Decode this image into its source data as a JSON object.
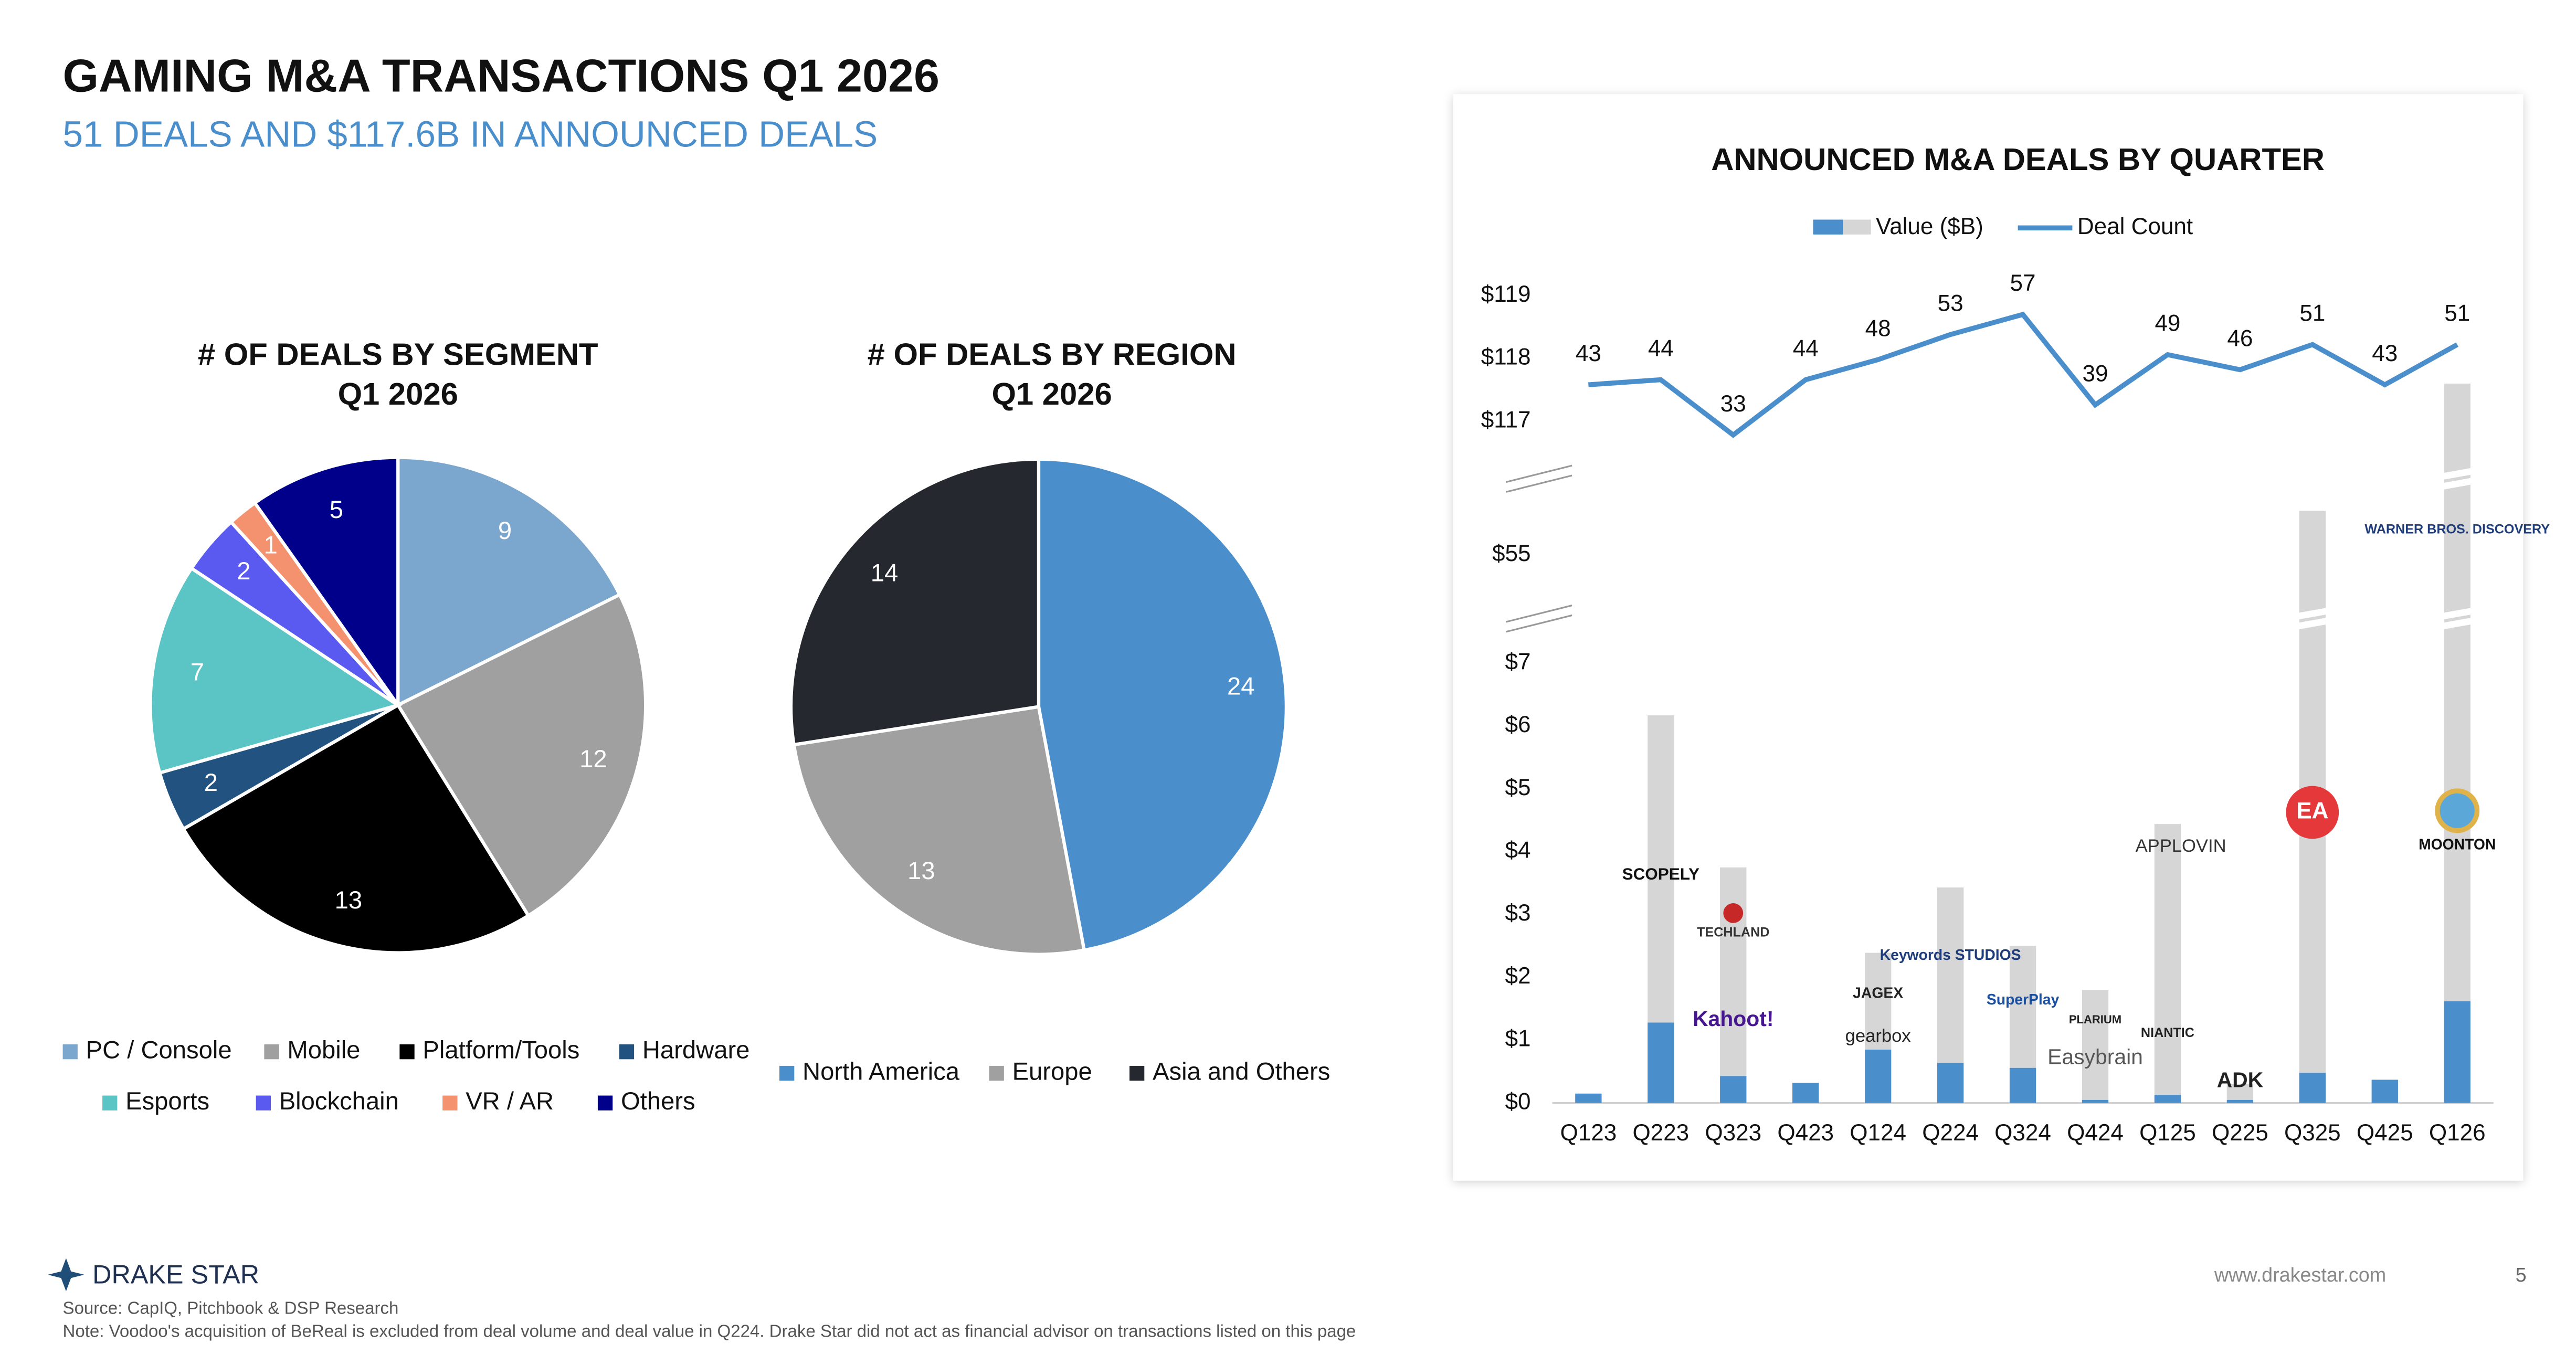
{
  "header": {
    "title": "GAMING M&A TRANSACTIONS Q1 2026",
    "subtitle": "51 DEALS AND $117.6B IN ANNOUNCED DEALS"
  },
  "chart_data": [
    {
      "type": "pie",
      "title": "# OF DEALS BY SEGMENT",
      "subtitle": "Q1 2026",
      "categories": [
        "PC / Console",
        "Mobile",
        "Platform/Tools",
        "Hardware",
        "Esports",
        "Blockchain",
        "VR / AR",
        "Others"
      ],
      "values": [
        9,
        12,
        13,
        2,
        7,
        2,
        1,
        5
      ],
      "colors": [
        "#7ba7cf",
        "#a0a0a0",
        "#000000",
        "#22527f",
        "#5bc4c4",
        "#5a5af0",
        "#f4916e",
        "#00008b"
      ]
    },
    {
      "type": "pie",
      "title": "# OF DEALS BY REGION",
      "subtitle": "Q1 2026",
      "categories": [
        "North America",
        "Europe",
        "Asia and Others"
      ],
      "values": [
        24,
        13,
        14
      ],
      "colors": [
        "#4a8fcc",
        "#a0a0a0",
        "#25282e"
      ]
    },
    {
      "type": "combo",
      "title": "ANNOUNCED M&A DEALS BY QUARTER",
      "categories": [
        "Q123",
        "Q223",
        "Q323",
        "Q423",
        "Q124",
        "Q224",
        "Q324",
        "Q424",
        "Q125",
        "Q225",
        "Q325",
        "Q425",
        "Q126"
      ],
      "series": [
        {
          "name": "Value ($B)",
          "type": "bar",
          "color": "#4a8fcc",
          "other_color": "#d6d6d6",
          "values": [
            0.15,
            1.28,
            0.43,
            0.32,
            0.85,
            0.64,
            0.56,
            0.05,
            0.13,
            0.05,
            0.48,
            0.37,
            1.62
          ],
          "other_values": [
            0,
            4.89,
            3.32,
            0,
            1.54,
            2.79,
            1.94,
            1.75,
            4.31,
            0.25,
            55.22,
            0,
            115.98
          ]
        },
        {
          "name": "Deal Count",
          "type": "line",
          "axis": "y2",
          "color": "#4a8fcc",
          "values": [
            43,
            44,
            33,
            44,
            48,
            53,
            57,
            39,
            49,
            46,
            51,
            43,
            51
          ]
        }
      ],
      "ylim": [
        0,
        119.5
      ],
      "axis_breaks": [
        [
          7.5,
          54.3
        ],
        [
          56.0,
          116.4
        ]
      ],
      "yticks": [
        {
          "value": 0,
          "label": "$0"
        },
        {
          "value": 1,
          "label": "$1"
        },
        {
          "value": 2,
          "label": "$2"
        },
        {
          "value": 3,
          "label": "$3"
        },
        {
          "value": 4,
          "label": "$4"
        },
        {
          "value": 5,
          "label": "$5"
        },
        {
          "value": 6,
          "label": "$6"
        },
        {
          "value": 7,
          "label": "$7"
        },
        {
          "value": 55,
          "label": "$55"
        },
        {
          "value": 117,
          "label": "$117"
        },
        {
          "value": 118,
          "label": "$118"
        },
        {
          "value": 119,
          "label": "$119"
        }
      ],
      "y2lim": [
        -100,
        67
      ],
      "annotations": [
        {
          "text": "SCOPELY",
          "category": "Q223"
        },
        {
          "text": "TECHLAND",
          "category": "Q323"
        },
        {
          "text": "Kahoot!",
          "category": "Q323"
        },
        {
          "text": "JAGEX",
          "category": "Q124"
        },
        {
          "text": "gearbox",
          "category": "Q124"
        },
        {
          "text": "Keywords STUDIOS",
          "category": "Q224"
        },
        {
          "text": "SuperPlay",
          "category": "Q324"
        },
        {
          "text": "PLARIUM",
          "category": "Q424"
        },
        {
          "text": "Easybrain",
          "category": "Q424"
        },
        {
          "text": "APPLOVIN",
          "category": "Q125"
        },
        {
          "text": "NIANTIC",
          "category": "Q125"
        },
        {
          "text": "ADK",
          "category": "Q225"
        },
        {
          "text": "EA",
          "category": "Q325"
        },
        {
          "text": "WARNER BROS. DISCOVERY",
          "category": "Q126"
        },
        {
          "text": "MOONTON",
          "category": "Q126"
        }
      ]
    }
  ],
  "footer": {
    "brand": "DRAKE STAR",
    "source": "Source: CapIQ, Pitchbook & DSP Research",
    "note": "Note: Voodoo's acquisition of BeReal is excluded from deal volume and deal value in Q224. Drake Star did not act as financial advisor on transactions listed on this page",
    "url": "www.drakestar.com",
    "page": "5"
  }
}
